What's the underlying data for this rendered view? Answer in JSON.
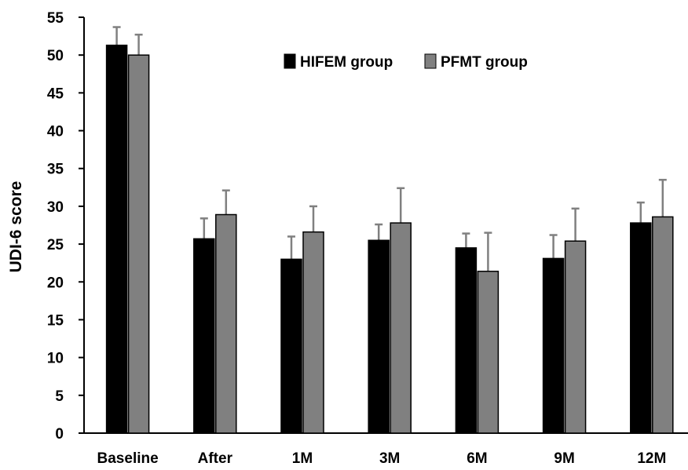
{
  "chart_data": {
    "type": "bar",
    "title": "",
    "xlabel": "",
    "ylabel": "UDI-6 score",
    "ylim": [
      0,
      55
    ],
    "ytick_step": 5,
    "yticks": [
      "0",
      "5",
      "10",
      "15",
      "20",
      "25",
      "30",
      "35",
      "40",
      "45",
      "50",
      "55"
    ],
    "categories": [
      "Baseline",
      "After",
      "1M",
      "3M",
      "6M",
      "9M",
      "12M"
    ],
    "grid": false,
    "legend_position": "top-right",
    "series": [
      {
        "name": "HIFEM group",
        "color": "#000000",
        "values": [
          51.3,
          25.7,
          23.0,
          25.5,
          24.5,
          23.1,
          27.8
        ],
        "error_plus": [
          2.4,
          2.7,
          3.0,
          2.1,
          1.9,
          3.1,
          2.7
        ]
      },
      {
        "name": "PFMT group",
        "color": "#808080",
        "values": [
          50.0,
          28.9,
          26.6,
          27.8,
          21.4,
          25.4,
          28.6
        ],
        "error_plus": [
          2.7,
          3.2,
          3.4,
          4.6,
          5.1,
          4.3,
          4.9
        ]
      }
    ]
  }
}
